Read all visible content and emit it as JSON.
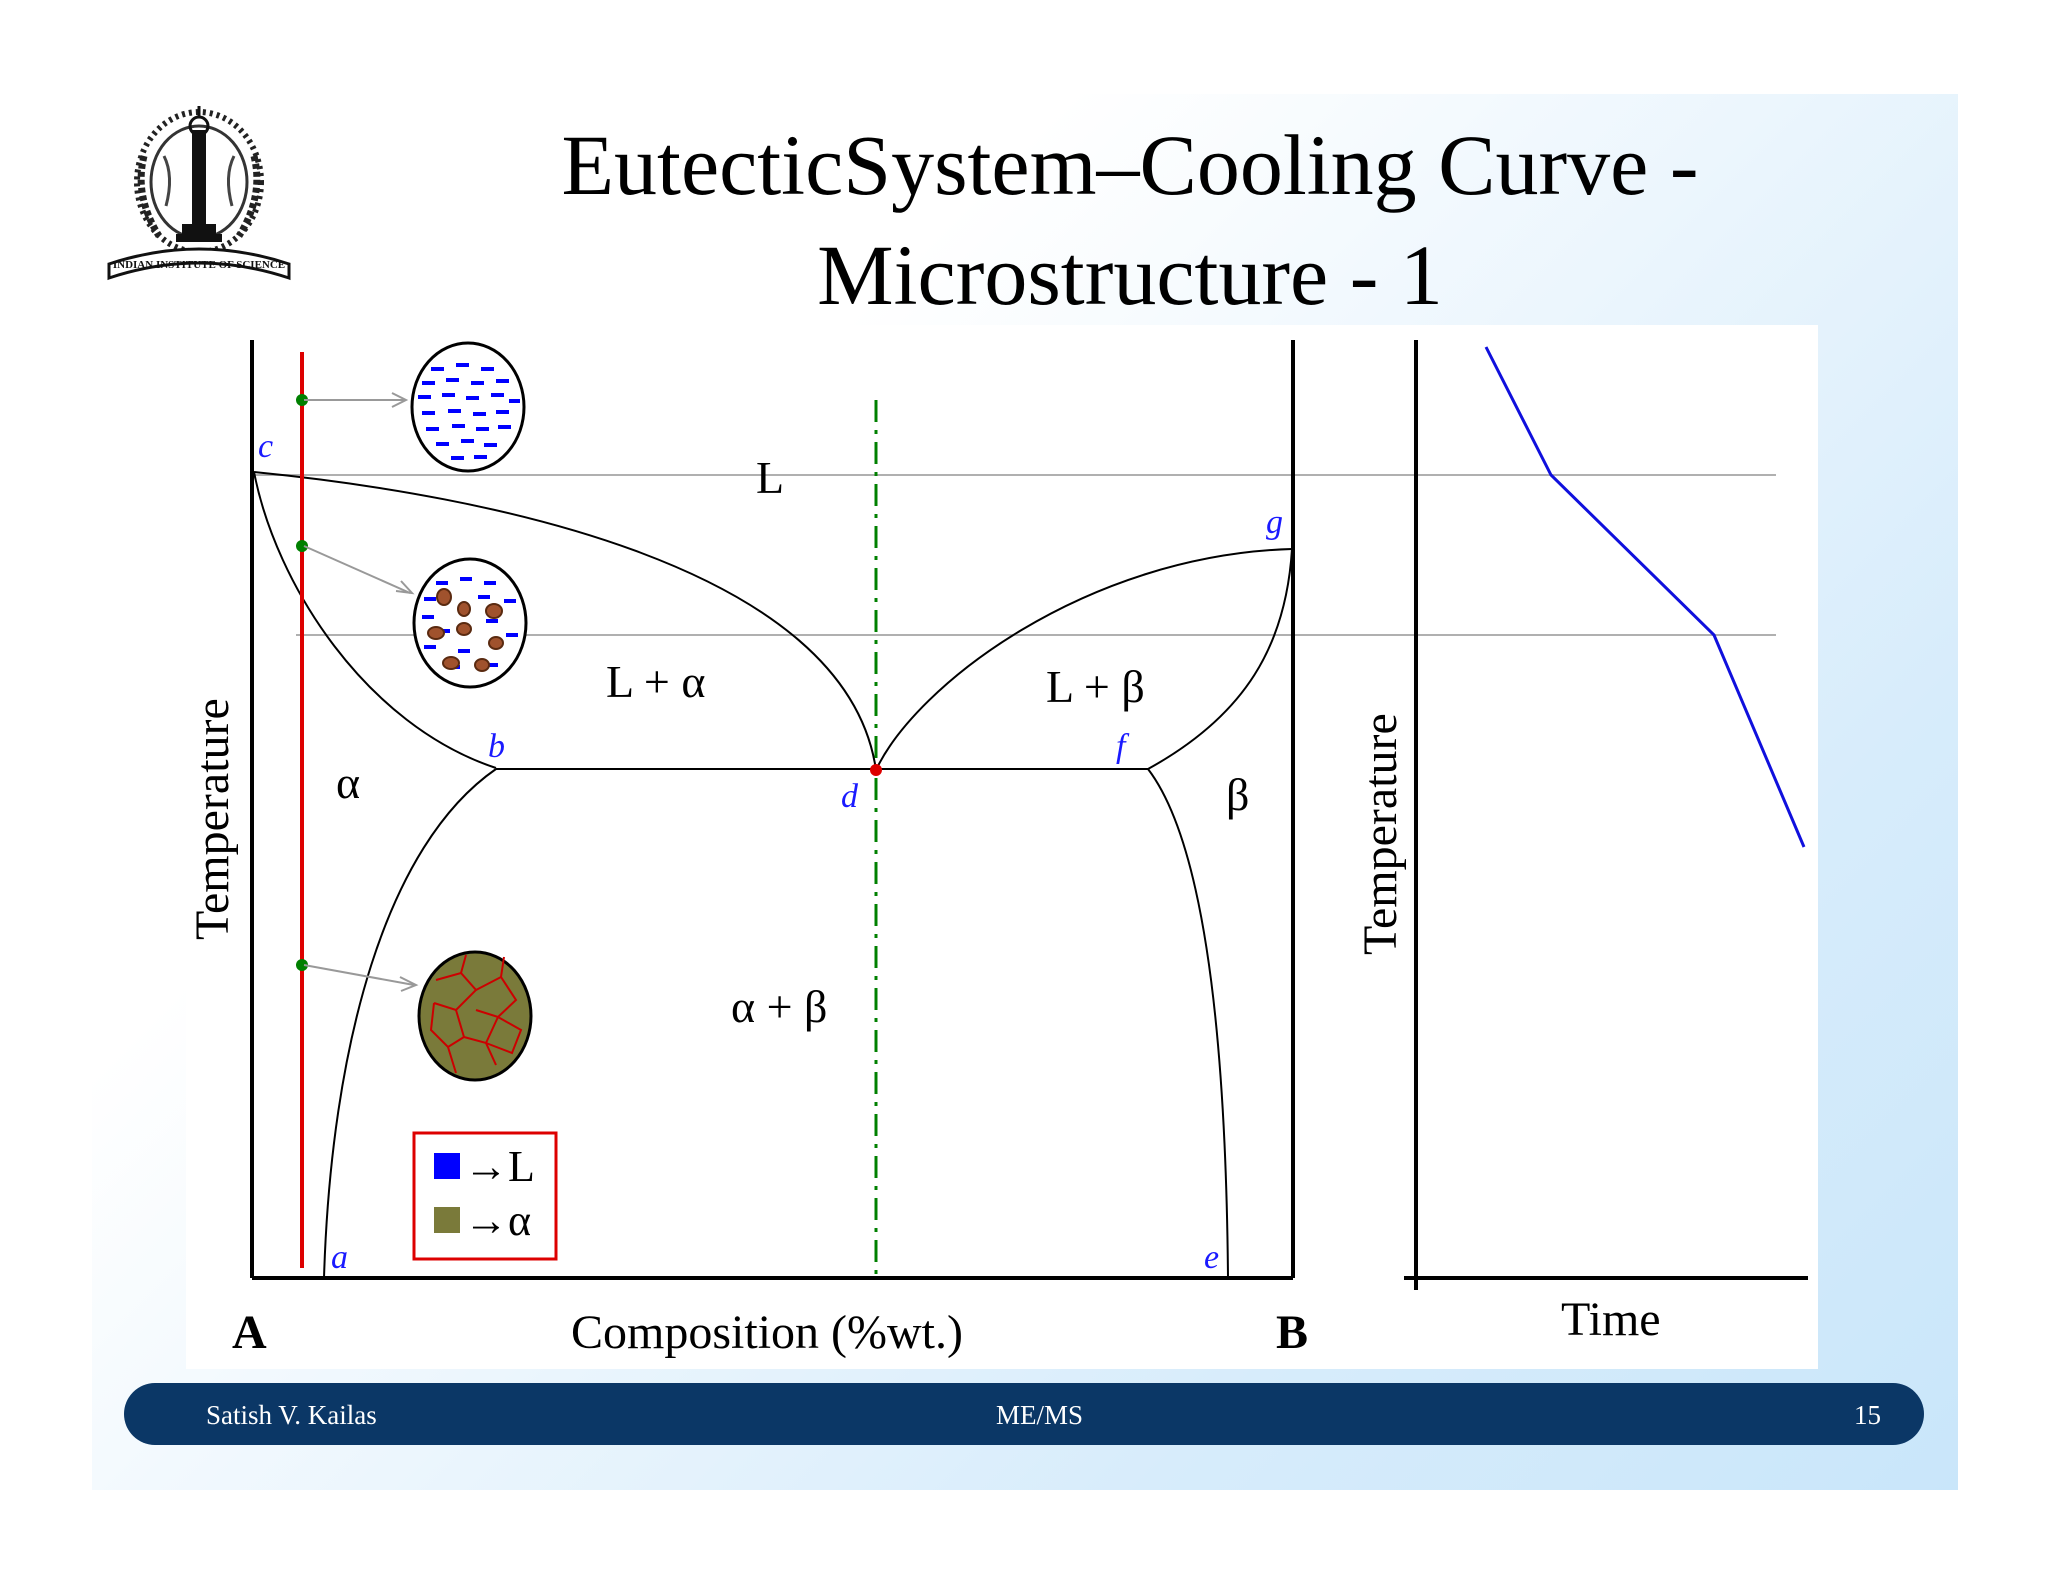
{
  "title": {
    "line1": "EutecticSystem–Cooling Curve -",
    "line2": "Microstructure - 1"
  },
  "logo": {
    "icon": "indian-institute-of-science-seal",
    "text": "INDIAN INSTITUTE OF SCIENCE"
  },
  "phase_diagram": {
    "y_axis_label": "Temperature",
    "x_axis_label": "Composition (%wt.)",
    "left_component": "A",
    "right_component": "B",
    "regions": {
      "liquid": "L",
      "liquid_alpha": "L + α",
      "liquid_beta": "L + β",
      "alpha": "α",
      "beta": "β",
      "alpha_beta": "α + β"
    },
    "points": {
      "a": "a",
      "b": "b",
      "c": "c",
      "d": "d",
      "e": "e",
      "f": "f",
      "g": "g"
    },
    "legend": {
      "liquid_entry": "→L",
      "alpha_entry": "→α",
      "liquid_color": "#0000ff",
      "alpha_color": "#7a7a3a"
    },
    "colors": {
      "alloy_line": "#dd0000",
      "eutectic_line": "#008000",
      "boundary": "#000000",
      "label": "#1a1aff"
    }
  },
  "cooling_curve": {
    "y_axis_label": "Temperature",
    "x_axis_label": "Time",
    "line_color": "#1010dd"
  },
  "footer": {
    "author": "Satish V. Kailas",
    "course": "ME/MS",
    "page": "15"
  }
}
